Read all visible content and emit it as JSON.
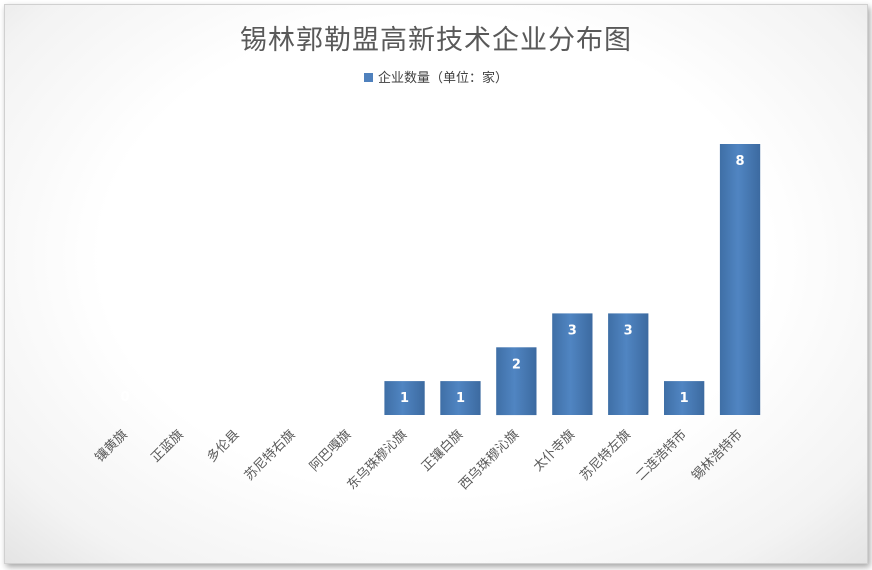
{
  "chart_data": {
    "type": "bar",
    "title": "锡林郭勒盟高新技术企业分布图",
    "legend": {
      "position": "top",
      "entries": [
        "企业数量（单位：家）"
      ]
    },
    "series": [
      {
        "name": "企业数量（单位：家）",
        "values": [
          0,
          0,
          0,
          0,
          0,
          1,
          1,
          2,
          3,
          3,
          1,
          8
        ]
      }
    ],
    "categories": [
      "镶黄旗",
      "正蓝旗",
      "多伦县",
      "苏尼特右旗",
      "阿巴嘎旗",
      "东乌珠穆沁旗",
      "正镶白旗",
      "西乌珠穆沁旗",
      "太仆寺旗",
      "苏尼特左旗",
      "二连浩特市",
      "锡林浩特市"
    ],
    "values": [
      0,
      0,
      0,
      0,
      0,
      1,
      1,
      2,
      3,
      3,
      1,
      8
    ],
    "data_labels": [
      "0",
      "0",
      "0",
      "0",
      "0",
      "1",
      "1",
      "2",
      "3",
      "3",
      "1",
      "8"
    ],
    "xlabel": "",
    "ylabel": "",
    "grid": false,
    "colors": {
      "bar": "#4f81bd",
      "bar_dark": "#3c6ea8",
      "label": "#ffffff",
      "text": "#595959"
    }
  }
}
